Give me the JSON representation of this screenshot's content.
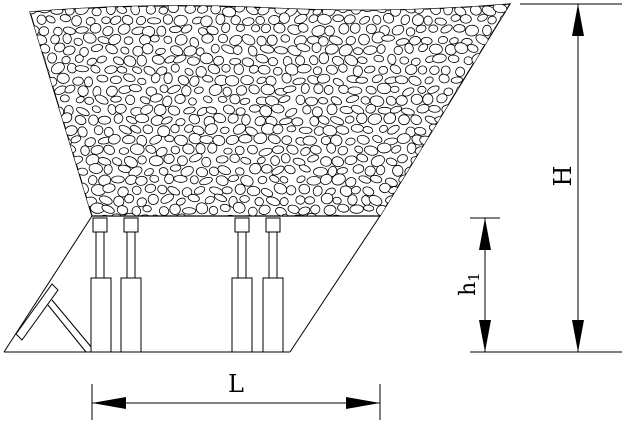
{
  "labels": {
    "length": "L",
    "height": "H",
    "support_height_main": "h",
    "support_height_sub": "1"
  },
  "colors": {
    "line": "#000000",
    "background": "#ffffff"
  }
}
